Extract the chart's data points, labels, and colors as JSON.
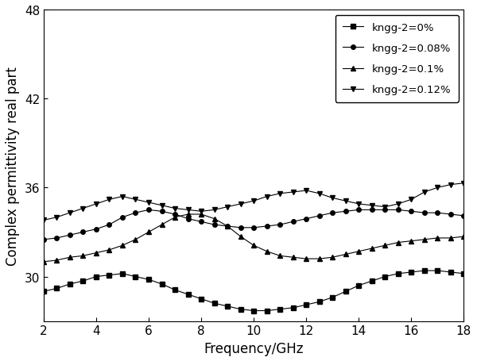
{
  "xlabel": "Frequency/GHz",
  "ylabel": "Complex permittivity real part",
  "xlim": [
    2,
    18
  ],
  "ylim": [
    27,
    48
  ],
  "yticks": [
    30,
    36,
    42,
    48
  ],
  "xticks": [
    2,
    4,
    6,
    8,
    10,
    12,
    14,
    16,
    18
  ],
  "freq": [
    2,
    2.5,
    3,
    3.5,
    4,
    4.5,
    5,
    5.5,
    6,
    6.5,
    7,
    7.5,
    8,
    8.5,
    9,
    9.5,
    10,
    10.5,
    11,
    11.5,
    12,
    12.5,
    13,
    13.5,
    14,
    14.5,
    15,
    15.5,
    16,
    16.5,
    17,
    17.5,
    18
  ],
  "series": [
    {
      "label": "kngg-2=0%",
      "marker": "s",
      "values": [
        29.0,
        29.2,
        29.5,
        29.7,
        30.0,
        30.1,
        30.2,
        30.0,
        29.8,
        29.5,
        29.1,
        28.8,
        28.5,
        28.2,
        28.0,
        27.8,
        27.7,
        27.7,
        27.8,
        27.9,
        28.1,
        28.3,
        28.6,
        29.0,
        29.4,
        29.7,
        30.0,
        30.2,
        30.3,
        30.4,
        30.4,
        30.3,
        30.2
      ]
    },
    {
      "label": "kngg-2=0.08%",
      "marker": "o",
      "values": [
        32.5,
        32.6,
        32.8,
        33.0,
        33.2,
        33.5,
        34.0,
        34.3,
        34.5,
        34.4,
        34.2,
        33.9,
        33.7,
        33.5,
        33.4,
        33.3,
        33.3,
        33.4,
        33.5,
        33.7,
        33.9,
        34.1,
        34.3,
        34.4,
        34.5,
        34.5,
        34.5,
        34.5,
        34.4,
        34.3,
        34.3,
        34.2,
        34.1
      ]
    },
    {
      "label": "kngg-2=0.1%",
      "marker": "^",
      "values": [
        31.0,
        31.1,
        31.3,
        31.4,
        31.6,
        31.8,
        32.1,
        32.5,
        33.0,
        33.5,
        34.0,
        34.2,
        34.2,
        33.9,
        33.4,
        32.7,
        32.1,
        31.7,
        31.4,
        31.3,
        31.2,
        31.2,
        31.3,
        31.5,
        31.7,
        31.9,
        32.1,
        32.3,
        32.4,
        32.5,
        32.6,
        32.6,
        32.7
      ]
    },
    {
      "label": "kngg-2=0.12%",
      "marker": "v",
      "values": [
        33.8,
        34.0,
        34.3,
        34.6,
        34.9,
        35.2,
        35.4,
        35.2,
        35.0,
        34.8,
        34.6,
        34.5,
        34.4,
        34.5,
        34.7,
        34.9,
        35.1,
        35.4,
        35.6,
        35.7,
        35.8,
        35.6,
        35.3,
        35.1,
        34.9,
        34.8,
        34.7,
        34.9,
        35.2,
        35.7,
        36.0,
        36.2,
        36.3
      ]
    }
  ],
  "line_color": "#000000",
  "markersize": 4,
  "linewidth": 0.8,
  "legend_loc": "upper right",
  "legend_fontsize": 9.5,
  "tick_fontsize": 11,
  "label_fontsize": 12,
  "legend_labelspacing": 1.0,
  "legend_handlelength": 2.0,
  "legend_borderpad": 0.7
}
